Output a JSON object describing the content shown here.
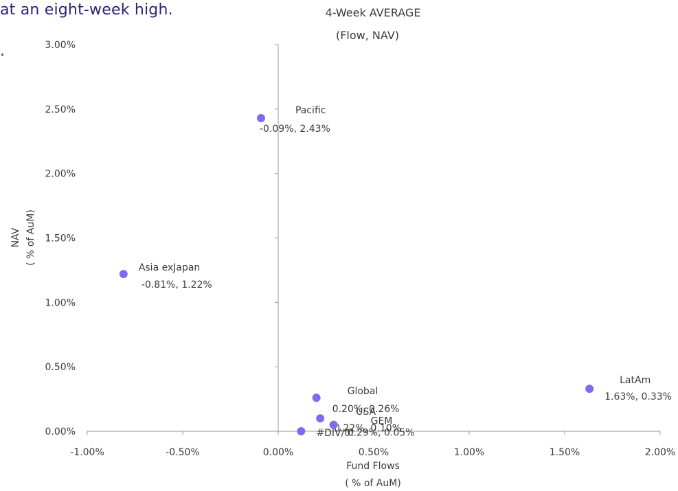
{
  "headline": {
    "line1": "at an eight-week high.",
    "line2": "."
  },
  "chart_data": {
    "type": "scatter",
    "title": [
      "4-Week AVERAGE",
      "(Flow, NAV)"
    ],
    "xlabel": [
      "Fund Flows",
      "( % of AuM)"
    ],
    "ylabel": [
      "NAV",
      "( % of AuM)"
    ],
    "xlim": [
      -1.0,
      2.0
    ],
    "ylim": [
      0.0,
      3.0
    ],
    "xticks": [
      -1.0,
      -0.5,
      0.0,
      0.5,
      1.0,
      1.5,
      2.0
    ],
    "yticks": [
      0.0,
      0.5,
      1.0,
      1.5,
      2.0,
      2.5,
      3.0
    ],
    "xtick_labels": [
      "-1.00%",
      "-0.50%",
      "0.00%",
      "0.50%",
      "1.00%",
      "1.50%",
      "2.00%"
    ],
    "ytick_labels": [
      "0.00%",
      "0.50%",
      "1.00%",
      "1.50%",
      "2.00%",
      "2.50%",
      "3.00%"
    ],
    "grid": false,
    "marker_color": "#7b6cf0",
    "points": [
      {
        "name": "Pacific",
        "x": -0.09,
        "y": 2.43,
        "value_label": "-0.09%, 2.43%"
      },
      {
        "name": "Asia exJapan",
        "x": -0.81,
        "y": 1.22,
        "value_label": "-0.81%, 1.22%"
      },
      {
        "name": "Global",
        "x": 0.2,
        "y": 0.26,
        "value_label": "0.20%, 0.26%"
      },
      {
        "name": "USA",
        "x": 0.22,
        "y": 0.1,
        "value_label": "0.22%, 0.10%"
      },
      {
        "name": "GEM",
        "x": 0.29,
        "y": 0.05,
        "value_label": "0.29%, 0.05%"
      },
      {
        "name": "#DIV/0!",
        "x": 0.12,
        "y": 0.0,
        "value_label": ""
      },
      {
        "name": "LatAm",
        "x": 1.63,
        "y": 0.33,
        "value_label": "1.63%, 0.33%"
      }
    ]
  }
}
